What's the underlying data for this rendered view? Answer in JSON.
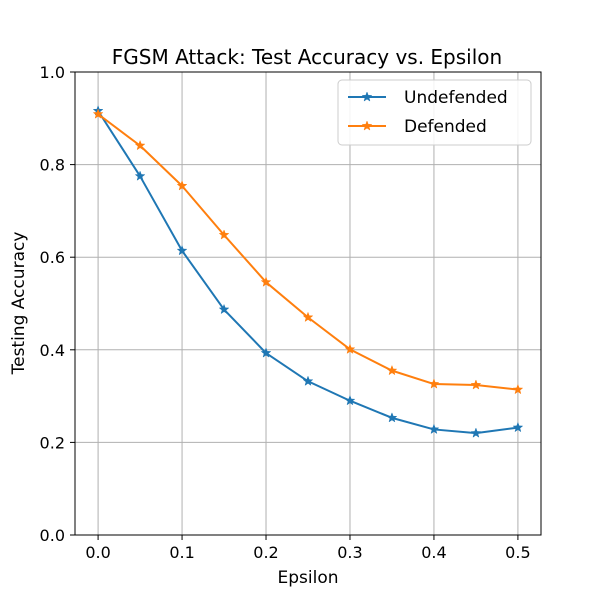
{
  "chart_data": {
    "type": "line",
    "title": "FGSM Attack: Test Accuracy vs. Epsilon",
    "xlabel": "Epsilon",
    "ylabel": "Testing Accuracy",
    "xlim": [
      -0.0275,
      0.5275
    ],
    "ylim": [
      0.0,
      1.0
    ],
    "xticks": [
      0.0,
      0.1,
      0.2,
      0.3,
      0.4,
      0.5
    ],
    "yticks": [
      0.0,
      0.2,
      0.4,
      0.6,
      0.8,
      1.0
    ],
    "xtick_labels": [
      "0.0",
      "0.1",
      "0.2",
      "0.3",
      "0.4",
      "0.5"
    ],
    "ytick_labels": [
      "0.0",
      "0.2",
      "0.4",
      "0.6",
      "0.8",
      "1.0"
    ],
    "grid": true,
    "legend_position": "top-right",
    "marker": "star",
    "x": [
      0.0,
      0.05,
      0.1,
      0.15,
      0.2,
      0.25,
      0.3,
      0.35,
      0.4,
      0.45,
      0.5
    ],
    "series": [
      {
        "name": "Undefended",
        "color": "#1f77b4",
        "values": [
          0.916,
          0.775,
          0.614,
          0.487,
          0.393,
          0.332,
          0.29,
          0.253,
          0.228,
          0.22,
          0.232
        ]
      },
      {
        "name": "Defended",
        "color": "#ff7f0e",
        "values": [
          0.909,
          0.841,
          0.754,
          0.648,
          0.546,
          0.47,
          0.401,
          0.355,
          0.326,
          0.324,
          0.314
        ]
      }
    ]
  }
}
